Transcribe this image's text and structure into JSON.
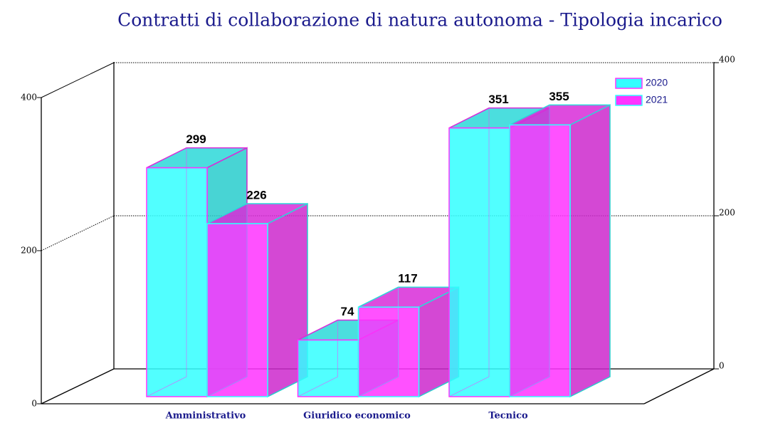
{
  "chart_data": {
    "type": "bar3d",
    "title": "Contratti di collaborazione di natura autonoma - Tipologia incarico",
    "categories": [
      "Amministrativo",
      "Giuridico economico",
      "Tecnico"
    ],
    "series": [
      {
        "name": "2020",
        "color": "#33ffff",
        "values": [
          299,
          74,
          351
        ]
      },
      {
        "name": "2021",
        "color": "#ff33ff",
        "values": [
          226,
          117,
          355
        ]
      }
    ],
    "ylim": [
      0,
      400
    ],
    "yticks": [
      0,
      200,
      400
    ],
    "grid": true,
    "legend": "top-right"
  }
}
